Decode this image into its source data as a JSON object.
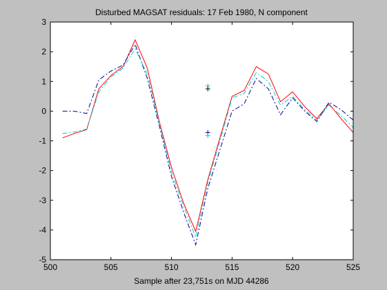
{
  "chart_data": {
    "type": "line",
    "title": "Disturbed MAGSAT residuals: 17 Feb 1980, N component",
    "xlabel": "Sample after 23,751s on MJD 44286",
    "ylabel": "",
    "xlim": [
      500,
      525
    ],
    "ylim": [
      -5,
      3
    ],
    "xticks": [
      500,
      505,
      510,
      515,
      520,
      525
    ],
    "yticks": [
      -5,
      -4,
      -3,
      -2,
      -1,
      0,
      1,
      2,
      3
    ],
    "grid": false,
    "series": [
      {
        "color": "#ff0000",
        "dash": "",
        "x": [
          501,
          502,
          503,
          504,
          505,
          506,
          507,
          508,
          509,
          510,
          511,
          512,
          513,
          514,
          515,
          516,
          517,
          518,
          519,
          520,
          521,
          522,
          523,
          524,
          525
        ],
        "y": [
          -0.9,
          -0.75,
          -0.62,
          0.75,
          1.2,
          1.5,
          2.4,
          1.45,
          -0.35,
          -1.9,
          -3.1,
          -4.05,
          -2.3,
          -0.9,
          0.5,
          0.7,
          1.5,
          1.25,
          0.32,
          0.65,
          0.15,
          -0.25,
          0.25,
          -0.25,
          -0.72
        ]
      },
      {
        "color": "#000099",
        "dash": "7,3,2,3",
        "x": [
          501,
          502,
          503,
          504,
          505,
          506,
          507,
          508,
          509,
          510,
          511,
          512,
          513,
          514,
          515,
          516,
          517,
          518,
          519,
          520,
          521,
          522,
          523,
          524,
          525
        ],
        "y": [
          0,
          0,
          -0.08,
          1.05,
          1.35,
          1.55,
          2.25,
          1.1,
          -0.5,
          -2.2,
          -3.4,
          -4.5,
          -2.6,
          -1.3,
          0,
          0.25,
          1.1,
          0.75,
          -0.12,
          0.45,
          0,
          -0.35,
          0.3,
          0.05,
          -0.3
        ]
      },
      {
        "color": "#00cccc",
        "dash": "7,3,2,3",
        "x": [
          501,
          502,
          503,
          504,
          505,
          506,
          507,
          508,
          509,
          510,
          511,
          512,
          513,
          514,
          515,
          516,
          517,
          518,
          519,
          520,
          521,
          522,
          523,
          524,
          525
        ],
        "y": [
          -0.75,
          -0.7,
          -0.6,
          0.65,
          1.15,
          1.45,
          2.1,
          1.25,
          -0.4,
          -2.05,
          -3.2,
          -4.25,
          -2.4,
          -1.0,
          0.45,
          0.6,
          1.3,
          1.0,
          0.2,
          0.5,
          0.05,
          -0.3,
          0.2,
          -0.15,
          -0.55
        ]
      }
    ],
    "markers": [
      {
        "x": 513,
        "y": 0.85,
        "color": "#00cccc",
        "symbol": "+"
      },
      {
        "x": 513,
        "y": 0.75,
        "color": "#000000",
        "symbol": "+"
      },
      {
        "x": 513,
        "y": -0.72,
        "color": "#000099",
        "symbol": "+"
      },
      {
        "x": 513,
        "y": -0.82,
        "color": "#00cccc",
        "symbol": "+"
      }
    ]
  },
  "colors": {
    "figure_background": "#c0c0c0",
    "axes_background": "#ffffff"
  }
}
